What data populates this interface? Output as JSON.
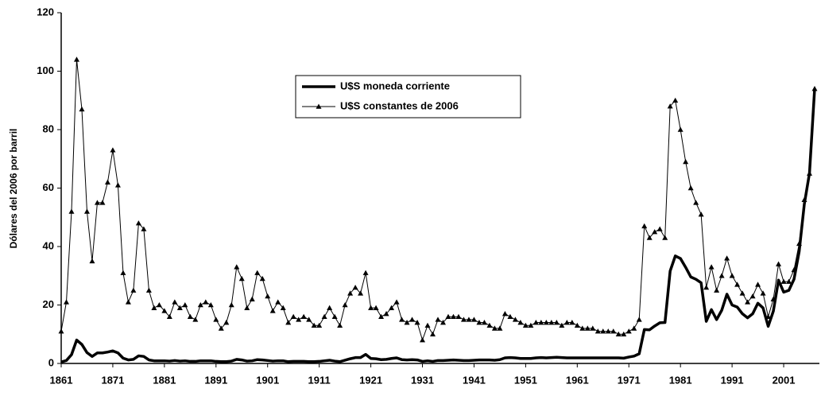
{
  "chart_data": {
    "type": "line",
    "y_label": "Dólares del 2006 por barril",
    "x": [
      1861,
      1862,
      1863,
      1864,
      1865,
      1866,
      1867,
      1868,
      1869,
      1870,
      1871,
      1872,
      1873,
      1874,
      1875,
      1876,
      1877,
      1878,
      1879,
      1880,
      1881,
      1882,
      1883,
      1884,
      1885,
      1886,
      1887,
      1888,
      1889,
      1890,
      1891,
      1892,
      1893,
      1894,
      1895,
      1896,
      1897,
      1898,
      1899,
      1900,
      1901,
      1902,
      1903,
      1904,
      1905,
      1906,
      1907,
      1908,
      1909,
      1910,
      1911,
      1912,
      1913,
      1914,
      1915,
      1916,
      1917,
      1918,
      1919,
      1920,
      1921,
      1922,
      1923,
      1924,
      1925,
      1926,
      1927,
      1928,
      1929,
      1930,
      1931,
      1932,
      1933,
      1934,
      1935,
      1936,
      1937,
      1938,
      1939,
      1940,
      1941,
      1942,
      1943,
      1944,
      1945,
      1946,
      1947,
      1948,
      1949,
      1950,
      1951,
      1952,
      1953,
      1954,
      1955,
      1956,
      1957,
      1958,
      1959,
      1960,
      1961,
      1962,
      1963,
      1964,
      1965,
      1966,
      1967,
      1968,
      1969,
      1970,
      1971,
      1972,
      1973,
      1974,
      1975,
      1976,
      1977,
      1978,
      1979,
      1980,
      1981,
      1982,
      1983,
      1984,
      1985,
      1986,
      1987,
      1988,
      1989,
      1990,
      1991,
      1992,
      1993,
      1994,
      1995,
      1996,
      1997,
      1998,
      1999,
      2000,
      2001,
      2002,
      2003,
      2004,
      2005,
      2006,
      2007
    ],
    "series": [
      {
        "name": "U$S moneda corriente",
        "color": "#000000",
        "marker": "none",
        "line_width": 3.5,
        "values": [
          0.5,
          1,
          3,
          8,
          6.5,
          3.7,
          2.4,
          3.6,
          3.6,
          3.9,
          4.3,
          3.6,
          1.8,
          1.2,
          1.4,
          2.6,
          2.4,
          1.2,
          0.9,
          0.9,
          0.9,
          0.8,
          1,
          0.8,
          0.9,
          0.7,
          0.7,
          0.9,
          0.9,
          0.9,
          0.7,
          0.6,
          0.6,
          0.8,
          1.4,
          1.2,
          0.8,
          0.9,
          1.3,
          1.2,
          1,
          0.8,
          0.9,
          0.9,
          0.6,
          0.7,
          0.7,
          0.7,
          0.6,
          0.6,
          0.7,
          0.9,
          1.1,
          0.8,
          0.6,
          1.1,
          1.6,
          2,
          2,
          3.1,
          1.7,
          1.6,
          1.3,
          1.4,
          1.7,
          1.9,
          1.3,
          1.2,
          1.3,
          1.2,
          0.7,
          0.9,
          0.7,
          1,
          1,
          1.1,
          1.2,
          1.1,
          1,
          1,
          1.1,
          1.2,
          1.2,
          1.2,
          1.1,
          1.3,
          1.9,
          2,
          1.9,
          1.7,
          1.7,
          1.7,
          1.9,
          2,
          1.9,
          2,
          2.1,
          2,
          1.9,
          1.9,
          1.9,
          1.9,
          1.9,
          1.9,
          1.9,
          1.9,
          1.9,
          1.9,
          1.9,
          1.8,
          2.2,
          2.5,
          3.3,
          11.6,
          11.5,
          12.8,
          13.9,
          14,
          31.6,
          36.8,
          35.9,
          32.9,
          29.6,
          28.8,
          27.6,
          14.4,
          18.4,
          15,
          18.2,
          23.7,
          20,
          19.3,
          17,
          15.6,
          17,
          20.6,
          19,
          12.7,
          17.9,
          28.5,
          24.4,
          25,
          28.8,
          38.3,
          54.5,
          65.1,
          94
        ]
      },
      {
        "name": "U$S constantes de 2006",
        "color": "#000000",
        "marker": "triangle",
        "line_width": 1,
        "values": [
          11,
          21,
          52,
          104,
          87,
          52,
          35,
          55,
          55,
          62,
          73,
          61,
          31,
          21,
          25,
          48,
          46,
          25,
          19,
          20,
          18,
          16,
          21,
          19,
          20,
          16,
          15,
          20,
          21,
          20,
          15,
          12,
          14,
          20,
          33,
          29,
          19,
          22,
          31,
          29,
          23,
          18,
          21,
          19,
          14,
          16,
          15,
          16,
          15,
          13,
          13,
          16,
          19,
          16,
          13,
          20,
          24,
          26,
          24,
          31,
          19,
          19,
          16,
          17,
          19,
          21,
          15,
          14,
          15,
          14,
          8,
          13,
          10,
          15,
          14,
          16,
          16,
          16,
          15,
          15,
          15,
          14,
          14,
          13,
          12,
          12,
          17,
          16,
          15,
          14,
          13,
          13,
          14,
          14,
          14,
          14,
          14,
          13,
          14,
          14,
          13,
          12,
          12,
          12,
          11,
          11,
          11,
          11,
          10,
          10,
          11,
          12,
          15,
          47,
          43,
          45,
          46,
          43,
          88,
          90,
          80,
          69,
          60,
          55,
          51,
          26,
          33,
          25,
          30,
          36,
          30,
          27,
          24,
          21,
          23,
          27,
          24,
          16,
          22,
          34,
          28,
          28,
          32,
          41,
          56,
          65,
          94
        ]
      }
    ],
    "xlim": [
      1861,
      2007
    ],
    "xticks": [
      1861,
      1871,
      1881,
      1891,
      1901,
      1911,
      1921,
      1931,
      1941,
      1951,
      1961,
      1971,
      1981,
      1991,
      2001
    ],
    "ylim": [
      0,
      120
    ],
    "yticks": [
      0,
      20,
      40,
      60,
      80,
      100,
      120
    ],
    "grid": false,
    "legend": "top"
  }
}
